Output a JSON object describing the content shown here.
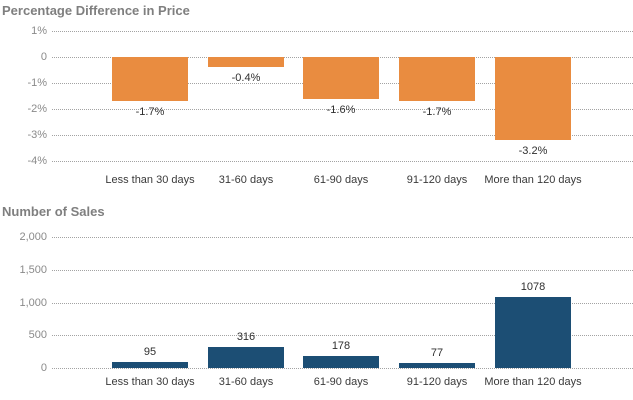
{
  "page": {
    "background_color": "#FFFFFF"
  },
  "style": {
    "title_color": "#7F7F7F",
    "tick_label_color": "#8A8A8A",
    "data_label_color": "#2F2F2F",
    "gridline_color": "#A3A3A3"
  },
  "chart_data": [
    {
      "type": "bar",
      "title": "Percentage Difference in Price",
      "categories": [
        "Less than 30 days",
        "31-60 days",
        "61-90 days",
        "91-120 days",
        "More than 120 days"
      ],
      "values": [
        -1.7,
        -0.4,
        -1.6,
        -1.7,
        -3.2
      ],
      "bar_labels": [
        "-1.7%",
        "-0.4%",
        "-1.6%",
        "-1.7%",
        "-3.2%"
      ],
      "bar_label_position": "below",
      "bar_color": "#E98C40",
      "ylim": [
        -4,
        1
      ],
      "yticks": [
        1,
        0,
        -1,
        -2,
        -3,
        -4
      ],
      "ytick_labels": [
        "1%",
        "0",
        "-1%",
        "-2%",
        "-3%",
        "-4%"
      ],
      "grid": "dotted",
      "legend": "none",
      "xlabel": "",
      "ylabel": ""
    },
    {
      "type": "bar",
      "title": "Number of Sales",
      "categories": [
        "Less than 30 days",
        "31-60 days",
        "61-90 days",
        "91-120 days",
        "More than 120 days"
      ],
      "values": [
        95,
        316,
        178,
        77,
        1078
      ],
      "bar_labels": [
        "95",
        "316",
        "178",
        "77",
        "1078"
      ],
      "bar_label_position": "above",
      "bar_color": "#1C4E74",
      "ylim": [
        0,
        2000
      ],
      "yticks": [
        2000,
        1500,
        1000,
        500,
        0
      ],
      "ytick_labels": [
        "2,000",
        "1,500",
        "1,000",
        "500",
        "0"
      ],
      "grid": "dotted",
      "legend": "none",
      "xlabel": "",
      "ylabel": ""
    }
  ]
}
